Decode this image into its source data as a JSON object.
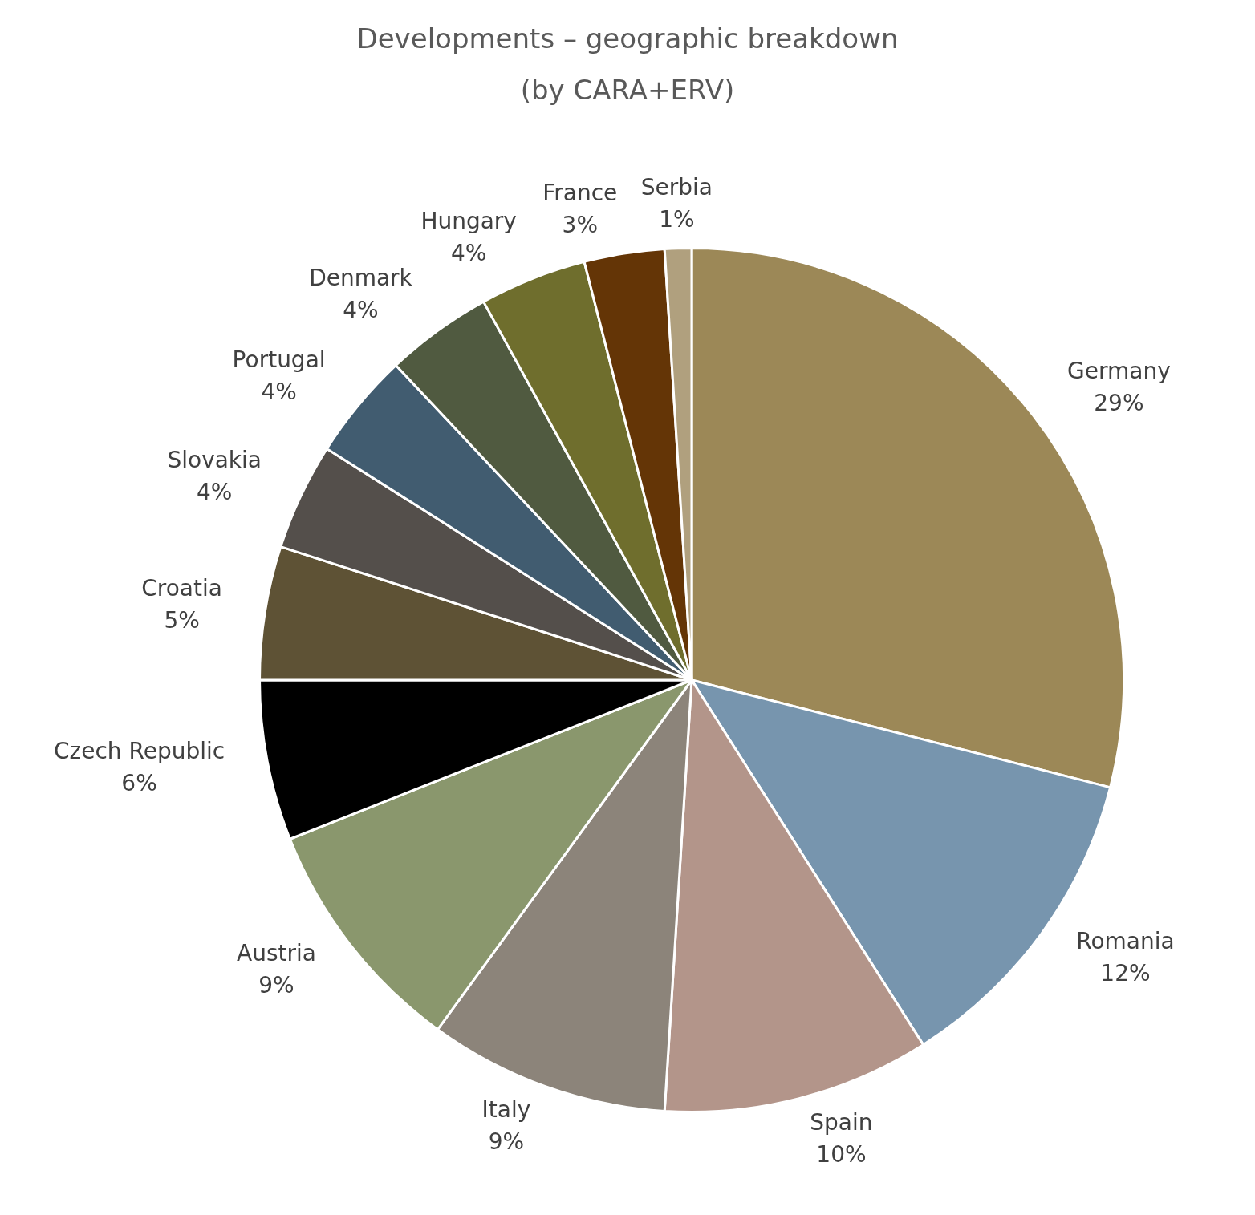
{
  "chart_data": {
    "type": "pie",
    "title": "Developments – geographic breakdown\n(by CARA+ERV)",
    "categories": [
      "Germany",
      "Romania",
      "Spain",
      "Italy",
      "Austria",
      "Czech Republic",
      "Croatia",
      "Slovakia",
      "Portugal",
      "Denmark",
      "Hungary",
      "France",
      "Serbia"
    ],
    "values": [
      29,
      12,
      10,
      9,
      9,
      6,
      5,
      4,
      4,
      4,
      4,
      3,
      1
    ],
    "value_labels": [
      "29%",
      "12%",
      "10%",
      "9%",
      "9%",
      "6%",
      "5%",
      "4%",
      "4%",
      "4%",
      "4%",
      "3%",
      "1%"
    ],
    "colors": [
      "#9c8857",
      "#7795ae",
      "#b3958a",
      "#8c847a",
      "#8a976d",
      "#000000",
      "#5e5235",
      "#544f4b",
      "#415c70",
      "#505a40",
      "#6f6e2d",
      "#643506",
      "#b0a07e"
    ],
    "legend": false
  }
}
